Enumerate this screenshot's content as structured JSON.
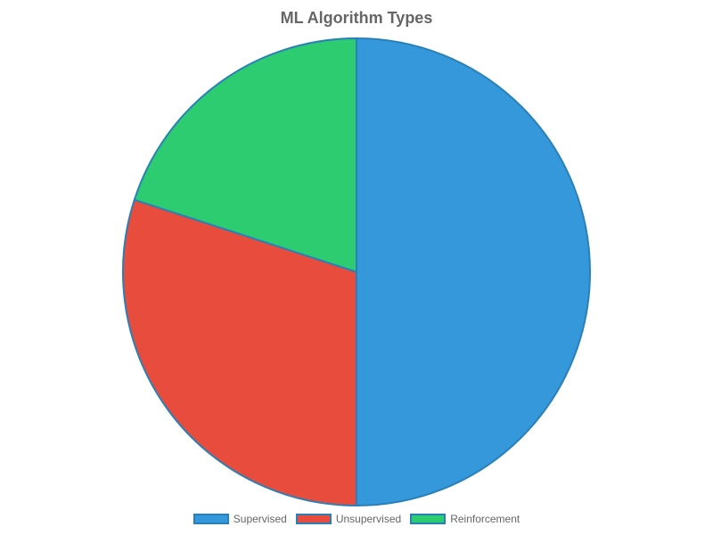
{
  "chart_data": {
    "type": "pie",
    "title": "ML Algorithm Types",
    "categories": [
      "Supervised",
      "Unsupervised",
      "Reinforcement"
    ],
    "values": [
      50,
      30,
      20
    ],
    "colors": [
      "#3498db",
      "#e74c3c",
      "#2ecc71"
    ],
    "border_color": "#2980b9",
    "legend_position": "bottom",
    "start_angle": "top",
    "direction": "clockwise"
  }
}
